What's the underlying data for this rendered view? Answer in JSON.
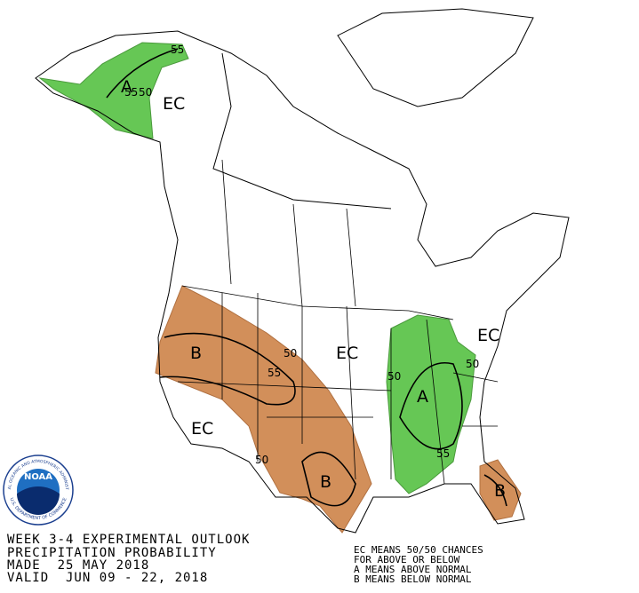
{
  "map": {
    "labels": [
      "EC",
      "A",
      "55",
      "50",
      "55",
      "B",
      "55",
      "50",
      "EC",
      "EC",
      "50",
      "A",
      "55",
      "50",
      "EC",
      "50",
      "B",
      "B"
    ]
  },
  "logo": {
    "name": "NOAA",
    "ring_top": "NATIONAL OCEANIC AND ATMOSPHERIC ADMINISTRATION",
    "ring_bottom": "U.S. DEPARTMENT OF COMMERCE"
  },
  "footer": {
    "lines": [
      "WEEK 3-4 EXPERIMENTAL OUTLOOK",
      "PRECIPITATION PROBABILITY",
      "MADE  25 MAY 2018",
      "VALID  JUN 09 - 22, 2018"
    ]
  },
  "legend": {
    "lines": [
      "EC MEANS 50/50 CHANCES",
      "FOR ABOVE OR BELOW",
      "A MEANS ABOVE NORMAL",
      "B MEANS BELOW NORMAL"
    ]
  }
}
